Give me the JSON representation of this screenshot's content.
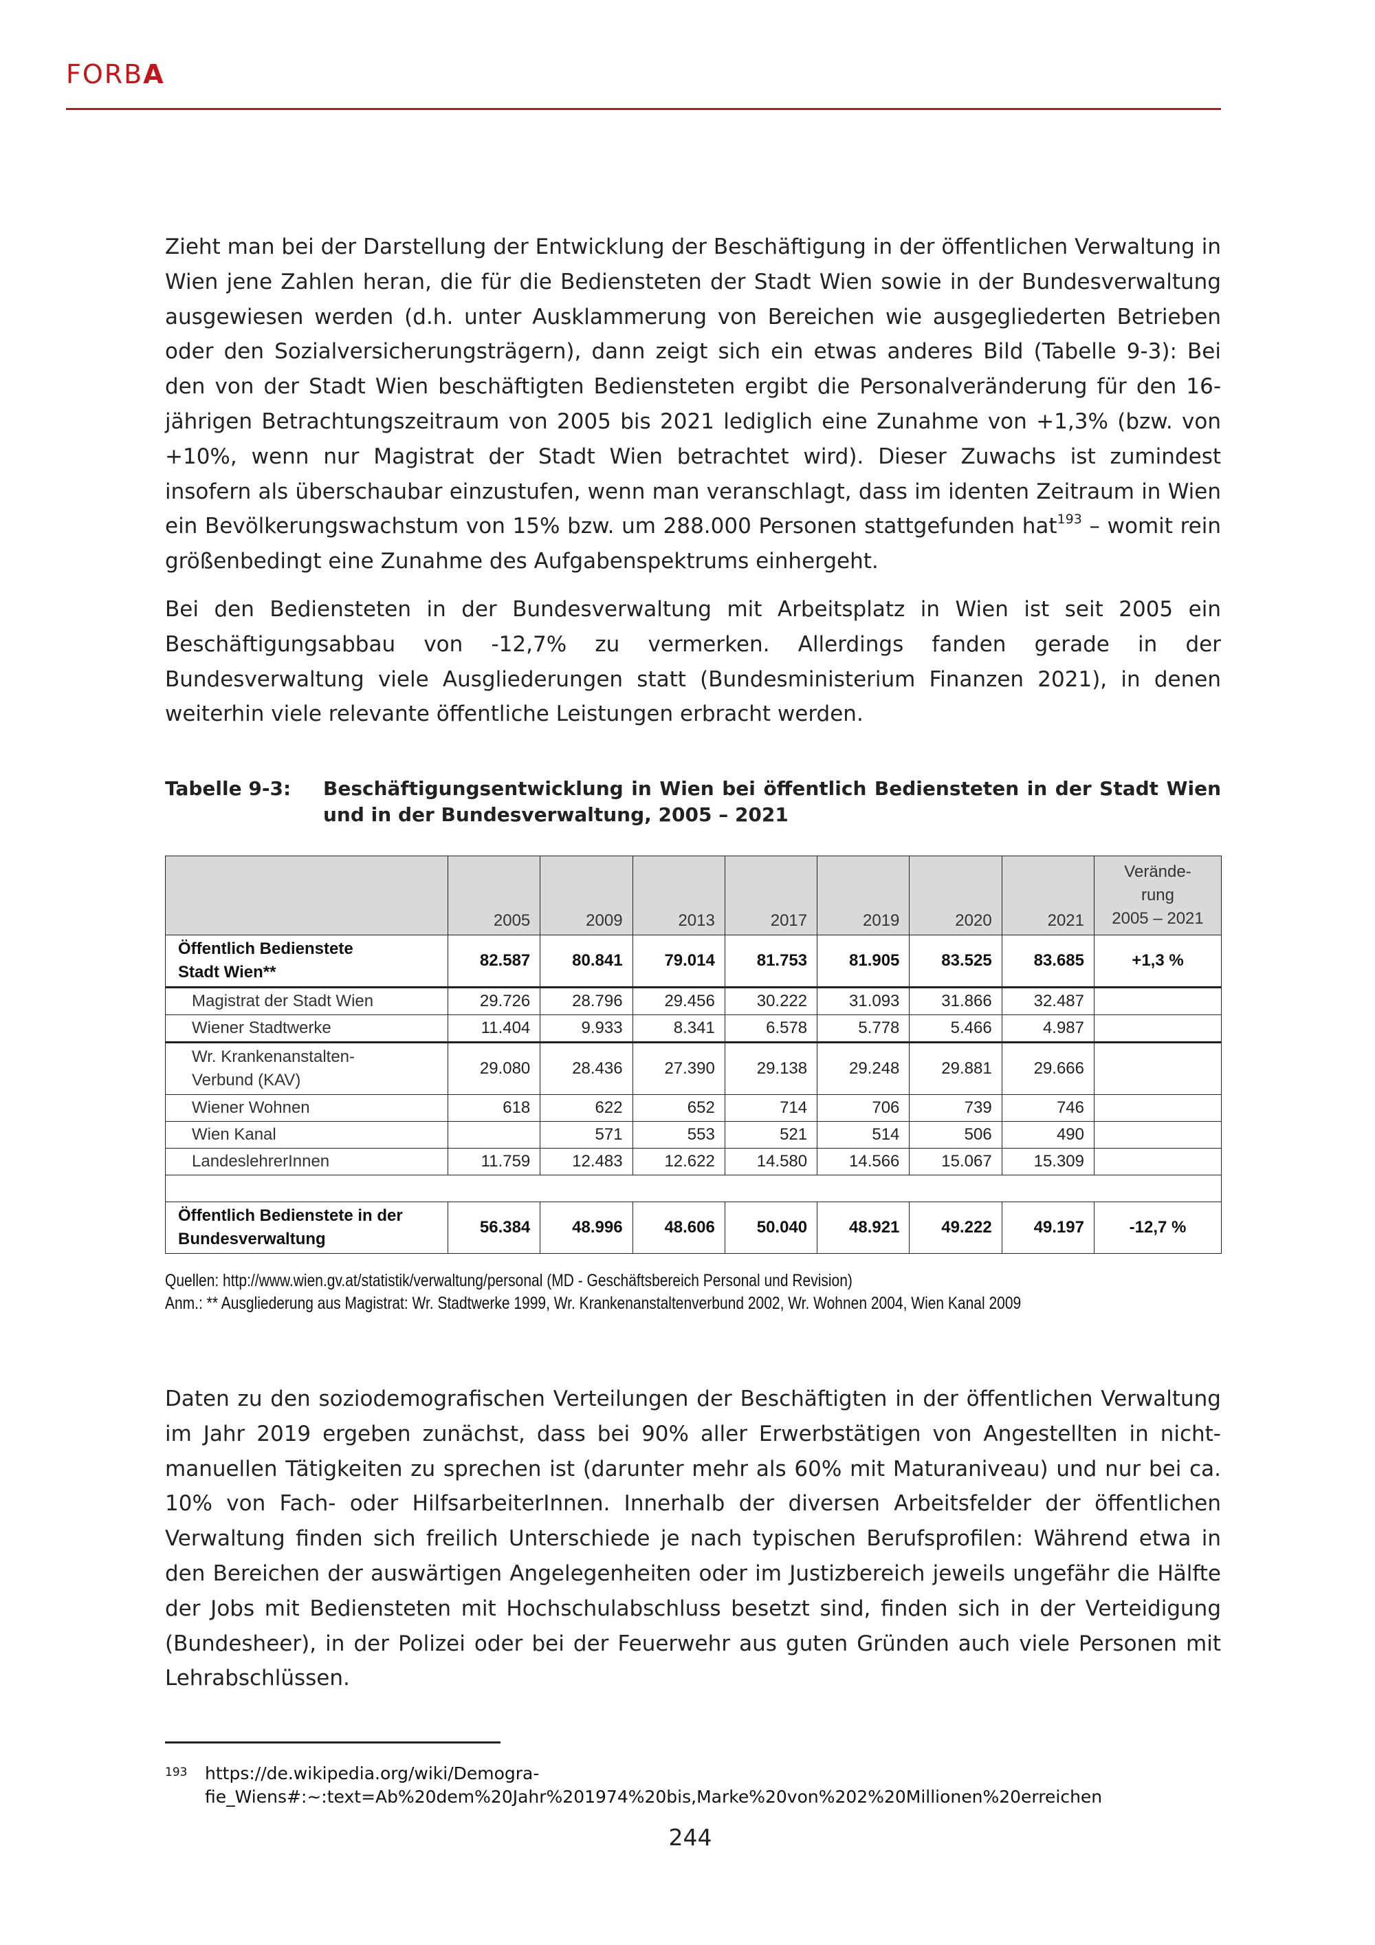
{
  "header": {
    "brand_main": "FORB",
    "brand_bold": "A"
  },
  "paragraphs": {
    "p1_a": "Zieht man bei der Darstellung der Entwicklung der Beschäftigung in der öffentlichen Verwaltung in Wien jene Zahlen heran, die für die Bediensteten der Stadt Wien sowie in der Bundesverwaltung ausgewiesen werden (d.h. unter Ausklammerung von Bereichen wie ausgegliederten Betrieben oder den Sozialversicherungsträgern), dann zeigt sich ein etwas anderes Bild (Tabelle 9-3): Bei den von der Stadt Wien beschäftigten Bediensteten ergibt die Personalveränderung für den 16-jährigen Betrachtungszeitraum von 2005 bis 2021 lediglich eine Zunahme von +1,3% (bzw. von +10%, wenn nur Magistrat der Stadt Wien betrachtet wird). Dieser Zuwachs ist zumindest insofern als überschaubar einzustufen, wenn man veranschlagt, dass im identen Zeitraum in Wien ein Bevölkerungswachstum von 15% bzw. um 288.000 Personen stattgefunden hat",
    "p1_fn": "193",
    "p1_b": " – womit rein größenbedingt eine Zunahme des Aufgabenspektrums einhergeht.",
    "p2": "Bei den Bediensteten in der Bundesverwaltung mit Arbeitsplatz in Wien ist seit 2005 ein Beschäftigungsabbau von -12,7% zu vermerken. Allerdings fanden gerade in der Bundesverwaltung viele Ausgliederungen statt (Bundesministerium Finanzen 2021), in denen weiterhin viele relevante öffentliche Leistungen erbracht werden.",
    "p3": "Daten zu den soziodemografischen Verteilungen der Beschäftigten in der öffentlichen Verwaltung im Jahr 2019 ergeben zunächst, dass bei 90% aller Erwerbstätigen von Angestellten in nicht-manuellen Tätigkeiten zu sprechen ist (darunter mehr als 60% mit Maturaniveau) und nur bei ca. 10% von Fach- oder HilfsarbeiterInnen. Innerhalb der diversen Arbeitsfelder der öffentlichen Verwaltung finden sich freilich Unterschiede je nach typischen Berufsprofilen: Während etwa in den Bereichen der auswärtigen Angelegenheiten oder im Justizbereich jeweils ungefähr die Hälfte der Jobs mit Bediensteten mit Hochschulabschluss besetzt sind, finden sich in der Verteidigung (Bundesheer), in der Polizei oder bei der Feuerwehr aus guten Gründen auch viele Personen mit Lehrabschlüssen."
  },
  "table": {
    "caption_label": "Tabelle 9-3:",
    "caption_text": "Beschäftigungsentwicklung in Wien bei öffentlich Bediensteten in der Stadt Wien und in der Bundesverwaltung, 2005 – 2021",
    "years": [
      "2005",
      "2009",
      "2013",
      "2017",
      "2019",
      "2020",
      "2021"
    ],
    "change_header": [
      "Verände-",
      "rung",
      "2005 – 2021"
    ],
    "rows": [
      {
        "label": [
          "Öffentlich Bedienstete",
          "Stadt Wien**"
        ],
        "values": [
          "82.587",
          "80.841",
          "79.014",
          "81.753",
          "81.905",
          "83.525",
          "83.685"
        ],
        "change": "+1,3 %"
      },
      {
        "label": [
          "Magistrat der Stadt Wien"
        ],
        "values": [
          "29.726",
          "28.796",
          "29.456",
          "30.222",
          "31.093",
          "31.866",
          "32.487"
        ],
        "change": ""
      },
      {
        "label": [
          "Wiener Stadtwerke"
        ],
        "values": [
          "11.404",
          "9.933",
          "8.341",
          "6.578",
          "5.778",
          "5.466",
          "4.987"
        ],
        "change": ""
      },
      {
        "label": [
          "Wr. Krankenanstalten-",
          "Verbund (KAV)"
        ],
        "values": [
          "29.080",
          "28.436",
          "27.390",
          "29.138",
          "29.248",
          "29.881",
          "29.666"
        ],
        "change": ""
      },
      {
        "label": [
          "Wiener Wohnen"
        ],
        "values": [
          "618",
          "622",
          "652",
          "714",
          "706",
          "739",
          "746"
        ],
        "change": ""
      },
      {
        "label": [
          "Wien Kanal"
        ],
        "values": [
          "",
          "571",
          "553",
          "521",
          "514",
          "506",
          "490"
        ],
        "change": ""
      },
      {
        "label": [
          "LandeslehrerInnen"
        ],
        "values": [
          "11.759",
          "12.483",
          "12.622",
          "14.580",
          "14.566",
          "15.067",
          "15.309"
        ],
        "change": ""
      },
      {
        "label": [
          "Öffentlich Bedienstete in der",
          "Bundesverwaltung"
        ],
        "values": [
          "56.384",
          "48.996",
          "48.606",
          "50.040",
          "48.921",
          "49.222",
          "49.197"
        ],
        "change": "-12,7 %"
      }
    ],
    "sources": "Quellen: http://www.wien.gv.at/statistik/verwaltung/personal (MD - Geschäftsbereich Personal und Revision)",
    "note": "Anm.: ** Ausgliederung aus Magistrat: Wr. Stadtwerke 1999, Wr. Krankenanstaltenverbund 2002, Wr. Wohnen 2004, Wien Kanal 2009"
  },
  "footnote": {
    "number": "193",
    "line1": "https://de.wikipedia.org/wiki/Demogra-",
    "line2": "fie_Wiens#:~:text=Ab%20dem%20Jahr%201974%20bis,Marke%20von%202%20Millionen%20erreichen"
  },
  "page_number": "244",
  "colors": {
    "brand": "#c0171c",
    "table_header_bg": "#d9d9d9"
  }
}
